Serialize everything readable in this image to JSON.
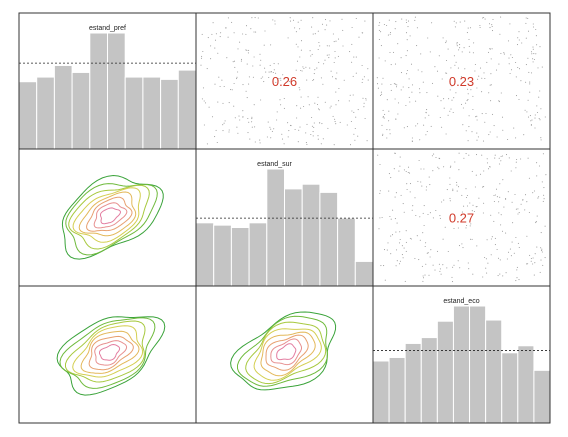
{
  "chart_data": {
    "type": "scatterplot-matrix",
    "variables": [
      "estand_pref",
      "estand_sur",
      "estand_eco"
    ],
    "diagonal_histograms": [
      {
        "variable": "estand_pref",
        "values": [
          0.58,
          0.62,
          0.72,
          0.66,
          1.0,
          1.0,
          0.62,
          0.62,
          0.6,
          0.68
        ],
        "mean_ref": 0.74,
        "label": "estand_pref"
      },
      {
        "variable": "estand_sur",
        "values": [
          0.54,
          0.52,
          0.5,
          0.54,
          1.0,
          0.83,
          0.87,
          0.8,
          0.58,
          0.21
        ],
        "mean_ref": 0.58,
        "label": "estand_sur"
      },
      {
        "variable": "estand_eco",
        "values": [
          0.53,
          0.56,
          0.68,
          0.73,
          0.87,
          1.0,
          1.0,
          0.88,
          0.6,
          0.66,
          0.45
        ],
        "mean_ref": 0.62,
        "label": "estand_eco"
      }
    ],
    "correlations": [
      {
        "row": "estand_pref",
        "col": "estand_sur",
        "value": "0.26"
      },
      {
        "row": "estand_pref",
        "col": "estand_eco",
        "value": "0.23"
      },
      {
        "row": "estand_sur",
        "col": "estand_eco",
        "value": "0.27"
      }
    ],
    "lower_panels": [
      {
        "row": "estand_sur",
        "col": "estand_pref",
        "kind": "density-contour"
      },
      {
        "row": "estand_eco",
        "col": "estand_pref",
        "kind": "density-contour"
      },
      {
        "row": "estand_eco",
        "col": "estand_sur",
        "kind": "density-contour"
      }
    ],
    "contour_colors": [
      "#3aa33a",
      "#6fba3c",
      "#a8c93f",
      "#d4cf52",
      "#e3b85a",
      "#e7a070",
      "#e79090",
      "#e37da0"
    ],
    "bar_color": "#c4c4c4",
    "correlation_color": "#d03a2a",
    "grid": false,
    "legend": "none"
  }
}
